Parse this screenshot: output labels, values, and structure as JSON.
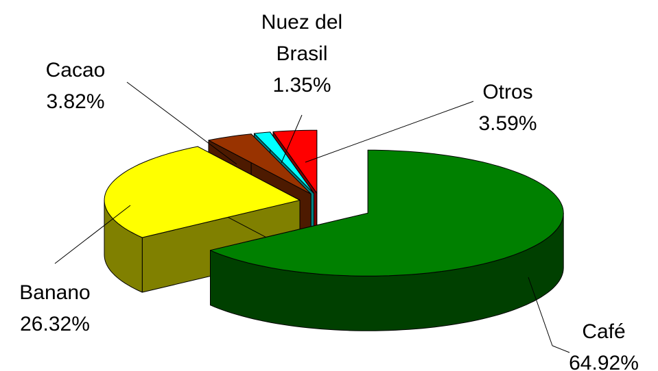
{
  "chart_data": {
    "type": "pie",
    "categories": [
      "Café",
      "Banano",
      "Cacao",
      "Nuez del Brasil",
      "Otros"
    ],
    "values": [
      64.92,
      26.32,
      3.82,
      1.35,
      3.59
    ],
    "value_labels": [
      "64.92%",
      "26.32%",
      "3.82%",
      "1.35%",
      "3.59%"
    ],
    "colors": [
      "#008000",
      "#ffff00",
      "#993300",
      "#00ffff",
      "#ff0000"
    ],
    "side_colors": [
      "#004000",
      "#808000",
      "#4d1a00",
      "#008080",
      "#800000"
    ]
  }
}
